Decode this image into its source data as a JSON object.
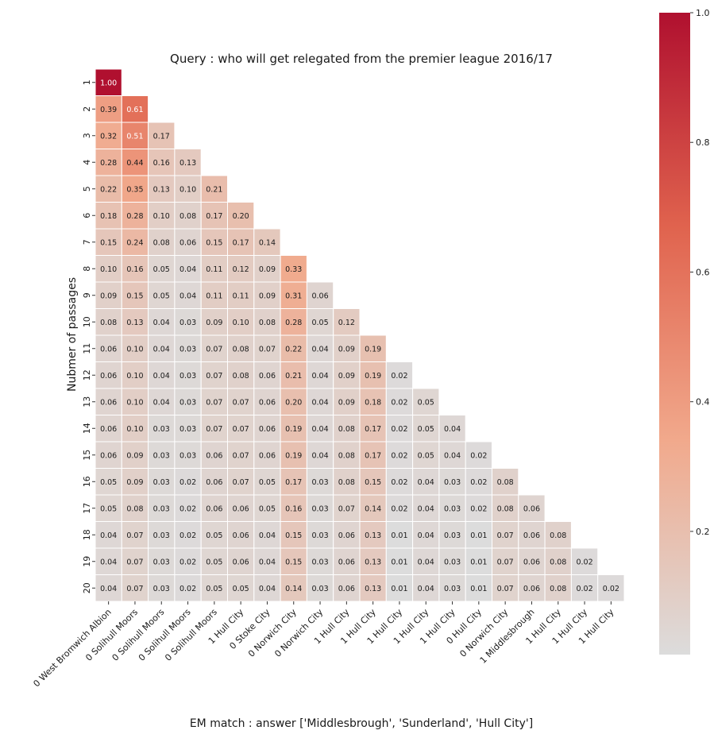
{
  "chart_data": {
    "type": "heatmap",
    "title": "Query : who will get relegated from the premier league 2016/17",
    "xlabel": "EM match : answer ['Middlesbrough', 'Sunderland', 'Hull City']",
    "ylabel": "Nubmer of passages",
    "y_categories": [
      "1",
      "2",
      "3",
      "4",
      "5",
      "6",
      "7",
      "8",
      "9",
      "10",
      "11",
      "12",
      "13",
      "14",
      "15",
      "16",
      "17",
      "18",
      "19",
      "20"
    ],
    "x_categories": [
      "0 West Bromwich Albion",
      "0 Solihull Moors",
      "0 Solihull Moors",
      "0 Solihull Moors",
      "0 Solihull Moors",
      "1 Hull City",
      "0 Stoke City",
      "0 Norwich City",
      "0 Norwich City",
      "1 Hull City",
      "1 Hull City",
      "1 Hull City",
      "1 Hull City",
      "1 Hull City",
      "0 Hull City",
      "0 Norwich City",
      "1 Middlesbrough",
      "1 Hull City",
      "1 Hull City",
      "1 Hull City"
    ],
    "values": [
      [
        1.0
      ],
      [
        0.39,
        0.61
      ],
      [
        0.32,
        0.51,
        0.17
      ],
      [
        0.28,
        0.44,
        0.16,
        0.13
      ],
      [
        0.22,
        0.35,
        0.13,
        0.1,
        0.21
      ],
      [
        0.18,
        0.28,
        0.1,
        0.08,
        0.17,
        0.2
      ],
      [
        0.15,
        0.24,
        0.08,
        0.06,
        0.15,
        0.17,
        0.14
      ],
      [
        0.1,
        0.16,
        0.05,
        0.04,
        0.11,
        0.12,
        0.09,
        0.33
      ],
      [
        0.09,
        0.15,
        0.05,
        0.04,
        0.11,
        0.11,
        0.09,
        0.31,
        0.06
      ],
      [
        0.08,
        0.13,
        0.04,
        0.03,
        0.09,
        0.1,
        0.08,
        0.28,
        0.05,
        0.12
      ],
      [
        0.06,
        0.1,
        0.04,
        0.03,
        0.07,
        0.08,
        0.07,
        0.22,
        0.04,
        0.09,
        0.19
      ],
      [
        0.06,
        0.1,
        0.04,
        0.03,
        0.07,
        0.08,
        0.06,
        0.21,
        0.04,
        0.09,
        0.19,
        0.02
      ],
      [
        0.06,
        0.1,
        0.04,
        0.03,
        0.07,
        0.07,
        0.06,
        0.2,
        0.04,
        0.09,
        0.18,
        0.02,
        0.05
      ],
      [
        0.06,
        0.1,
        0.03,
        0.03,
        0.07,
        0.07,
        0.06,
        0.19,
        0.04,
        0.08,
        0.17,
        0.02,
        0.05,
        0.04
      ],
      [
        0.06,
        0.09,
        0.03,
        0.03,
        0.06,
        0.07,
        0.06,
        0.19,
        0.04,
        0.08,
        0.17,
        0.02,
        0.05,
        0.04,
        0.02
      ],
      [
        0.05,
        0.09,
        0.03,
        0.02,
        0.06,
        0.07,
        0.05,
        0.17,
        0.03,
        0.08,
        0.15,
        0.02,
        0.04,
        0.03,
        0.02,
        0.08
      ],
      [
        0.05,
        0.08,
        0.03,
        0.02,
        0.06,
        0.06,
        0.05,
        0.16,
        0.03,
        0.07,
        0.14,
        0.02,
        0.04,
        0.03,
        0.02,
        0.08,
        0.06
      ],
      [
        0.04,
        0.07,
        0.03,
        0.02,
        0.05,
        0.06,
        0.04,
        0.15,
        0.03,
        0.06,
        0.13,
        0.01,
        0.04,
        0.03,
        0.01,
        0.07,
        0.06,
        0.08
      ],
      [
        0.04,
        0.07,
        0.03,
        0.02,
        0.05,
        0.06,
        0.04,
        0.15,
        0.03,
        0.06,
        0.13,
        0.01,
        0.04,
        0.03,
        0.01,
        0.07,
        0.06,
        0.08,
        0.02
      ],
      [
        0.04,
        0.07,
        0.03,
        0.02,
        0.05,
        0.05,
        0.04,
        0.14,
        0.03,
        0.06,
        0.13,
        0.01,
        0.04,
        0.03,
        0.01,
        0.07,
        0.06,
        0.08,
        0.02,
        0.02
      ]
    ],
    "colorbar": {
      "ticks": [
        "0.2",
        "0.4",
        "0.6",
        "0.8",
        "1.0"
      ],
      "tick_values": [
        0.2,
        0.4,
        0.6,
        0.8,
        1.0
      ],
      "range": [
        0.01,
        1.0
      ],
      "colors": [
        "#dcdcdc",
        "#f1a98c",
        "#e0634e",
        "#b0102f"
      ]
    },
    "legend": "colorbar right",
    "grid": false
  }
}
